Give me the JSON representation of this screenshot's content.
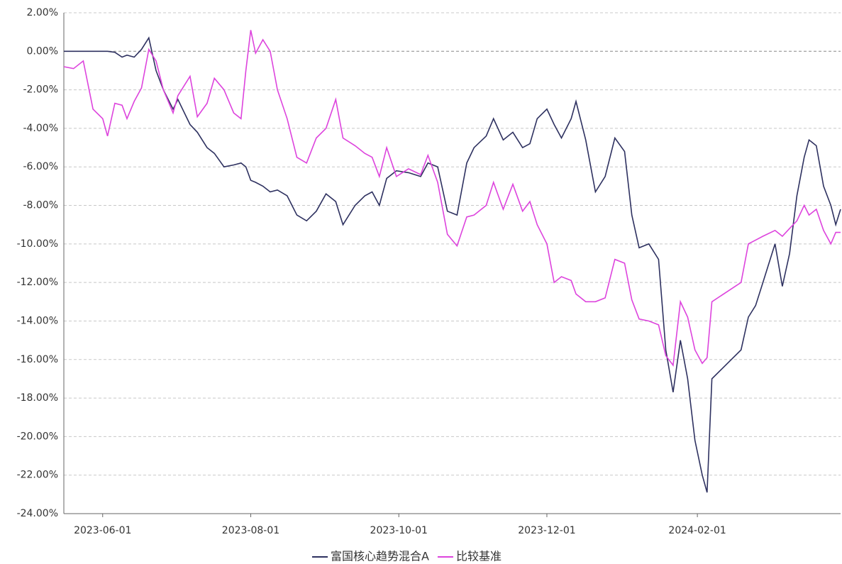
{
  "chart_data": {
    "type": "line",
    "x": [
      "2023-05-16",
      "2023-05-20",
      "2023-05-24",
      "2023-05-28",
      "2023-06-01",
      "2023-06-03",
      "2023-06-06",
      "2023-06-09",
      "2023-06-11",
      "2023-06-14",
      "2023-06-17",
      "2023-06-20",
      "2023-06-23",
      "2023-06-26",
      "2023-06-30",
      "2023-07-02",
      "2023-07-07",
      "2023-07-10",
      "2023-07-14",
      "2023-07-17",
      "2023-07-21",
      "2023-07-25",
      "2023-07-28",
      "2023-07-30",
      "2023-08-01",
      "2023-08-03",
      "2023-08-06",
      "2023-08-09",
      "2023-08-12",
      "2023-08-16",
      "2023-08-20",
      "2023-08-24",
      "2023-08-28",
      "2023-09-01",
      "2023-09-05",
      "2023-09-08",
      "2023-09-13",
      "2023-09-17",
      "2023-09-20",
      "2023-09-23",
      "2023-09-26",
      "2023-09-30",
      "2023-10-05",
      "2023-10-10",
      "2023-10-13",
      "2023-10-17",
      "2023-10-21",
      "2023-10-25",
      "2023-10-29",
      "2023-11-01",
      "2023-11-06",
      "2023-11-09",
      "2023-11-13",
      "2023-11-17",
      "2023-11-21",
      "2023-11-24",
      "2023-11-27",
      "2023-12-01",
      "2023-12-04",
      "2023-12-07",
      "2023-12-11",
      "2023-12-13",
      "2023-12-17",
      "2023-12-21",
      "2023-12-25",
      "2023-12-29",
      "2024-01-02",
      "2024-01-05",
      "2024-01-08",
      "2024-01-12",
      "2024-01-16",
      "2024-01-19",
      "2024-01-22",
      "2024-01-25",
      "2024-01-28",
      "2024-01-31",
      "2024-02-03",
      "2024-02-05",
      "2024-02-07",
      "2024-02-19",
      "2024-02-22",
      "2024-02-25",
      "2024-02-28",
      "2024-03-04",
      "2024-03-07",
      "2024-03-10",
      "2024-03-13",
      "2024-03-16",
      "2024-03-18",
      "2024-03-21",
      "2024-03-24",
      "2024-03-27",
      "2024-03-29",
      "2024-03-31"
    ],
    "series": [
      {
        "name": "富国核心趋势混合A",
        "color": "#2e3160",
        "values": [
          0,
          0,
          0,
          0,
          0,
          0,
          -0.05,
          -0.3,
          -0.2,
          -0.3,
          0.1,
          0.7,
          -1.0,
          -2.0,
          -3.0,
          -2.5,
          -3.8,
          -4.2,
          -5.0,
          -5.3,
          -6.0,
          -5.9,
          -5.8,
          -6.0,
          -6.7,
          -6.8,
          -7.0,
          -7.3,
          -7.2,
          -7.5,
          -8.5,
          -8.8,
          -8.3,
          -7.4,
          -7.8,
          -9.0,
          -8.0,
          -7.5,
          -7.3,
          -8.0,
          -6.6,
          -6.2,
          -6.3,
          -6.5,
          -5.8,
          -6.0,
          -8.3,
          -8.5,
          -5.8,
          -5.0,
          -4.4,
          -3.5,
          -4.6,
          -4.2,
          -5.0,
          -4.8,
          -3.5,
          -3.0,
          -3.8,
          -4.5,
          -3.5,
          -2.6,
          -4.6,
          -7.3,
          -6.5,
          -4.5,
          -5.2,
          -8.5,
          -10.2,
          -10.0,
          -10.8,
          -15.5,
          -17.7,
          -15.0,
          -17.0,
          -20.2,
          -22.0,
          -22.9,
          -17.0,
          -15.5,
          -13.8,
          -13.2,
          -12.0,
          -10.0,
          -12.2,
          -10.5,
          -7.5,
          -5.5,
          -4.6,
          -4.9,
          -7.0,
          -8.0,
          -9.0,
          -8.2
        ]
      },
      {
        "name": "比较基准",
        "color": "#dd44dd",
        "values": [
          -0.8,
          -0.9,
          -0.5,
          -3.0,
          -3.5,
          -4.4,
          -2.7,
          -2.8,
          -3.5,
          -2.6,
          -1.9,
          0.1,
          -0.5,
          -2.0,
          -3.2,
          -2.3,
          -1.3,
          -3.4,
          -2.7,
          -1.4,
          -2.0,
          -3.2,
          -3.5,
          -1.0,
          1.1,
          -0.1,
          0.6,
          0,
          -2.0,
          -3.5,
          -5.5,
          -5.8,
          -4.5,
          -4.0,
          -2.5,
          -4.5,
          -4.9,
          -5.3,
          -5.5,
          -6.5,
          -5.0,
          -6.5,
          -6.1,
          -6.4,
          -5.4,
          -6.8,
          -9.5,
          -10.1,
          -8.6,
          -8.5,
          -8.0,
          -6.8,
          -8.2,
          -6.9,
          -8.3,
          -7.8,
          -9.0,
          -10.0,
          -12.0,
          -11.7,
          -11.9,
          -12.6,
          -13.0,
          -13.0,
          -12.8,
          -10.8,
          -11.0,
          -12.9,
          -13.9,
          -14.0,
          -14.2,
          -15.8,
          -16.3,
          -13.0,
          -13.8,
          -15.5,
          -16.2,
          -15.9,
          -13.0,
          -12.0,
          -10.0,
          -9.8,
          -9.6,
          -9.3,
          -9.6,
          -9.2,
          -8.8,
          -8.0,
          -8.5,
          -8.2,
          -9.3,
          -10.0,
          -9.4,
          -9.4
        ]
      }
    ],
    "xlim": [
      "2023-05-16",
      "2024-03-31"
    ],
    "xticks": [
      "2023-06-01",
      "2023-08-01",
      "2023-10-01",
      "2023-12-01",
      "2024-02-01"
    ],
    "ylim": [
      -24,
      2
    ],
    "yticks": [
      {
        "value": 2,
        "label": "2.00%"
      },
      {
        "value": 0,
        "label": "0.00%"
      },
      {
        "value": -2,
        "label": "-2.00%"
      },
      {
        "value": -4,
        "label": "-4.00%"
      },
      {
        "value": -6,
        "label": "-6.00%"
      },
      {
        "value": -8,
        "label": "-8.00%"
      },
      {
        "value": -10,
        "label": "-10.00%"
      },
      {
        "value": -12,
        "label": "-12.00%"
      },
      {
        "value": -14,
        "label": "-14.00%"
      },
      {
        "value": -16,
        "label": "-16.00%"
      },
      {
        "value": -18,
        "label": "-18.00%"
      },
      {
        "value": -20,
        "label": "-20.00%"
      },
      {
        "value": -22,
        "label": "-22.00%"
      },
      {
        "value": -24,
        "label": "-24.00%"
      }
    ],
    "grid": true,
    "legend": "bottom"
  }
}
